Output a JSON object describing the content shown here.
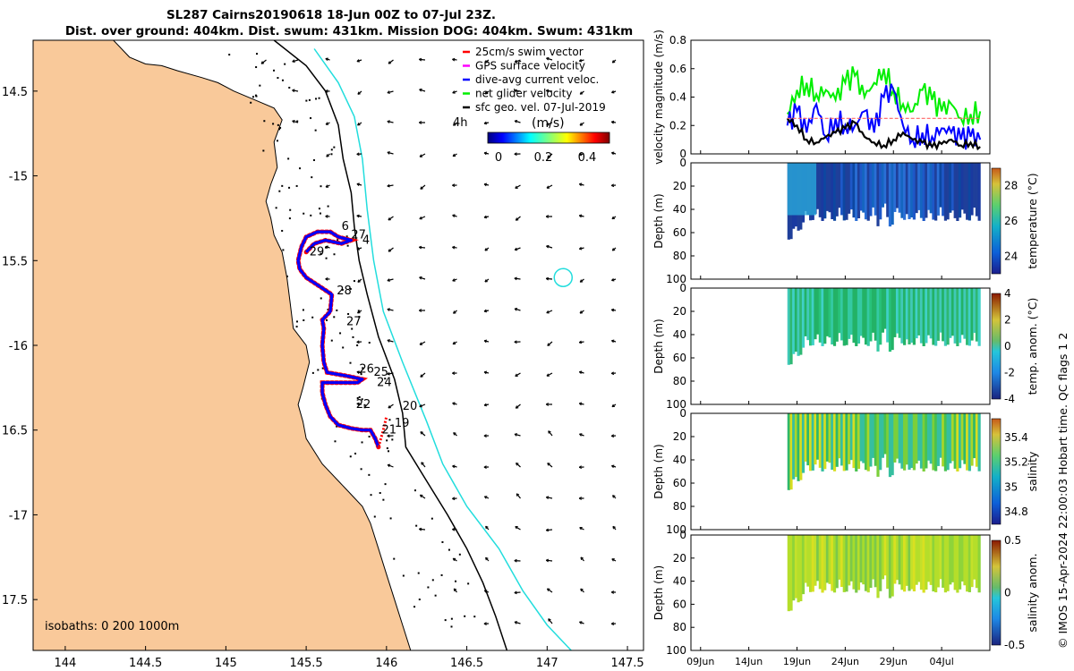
{
  "title_line1": "SL287 Cairns20190618 18-Jun 00Z to 07-Jul 23Z.",
  "title_line2": "Dist. over ground: 404km. Dist. swum: 431km. Mission DOG: 404km. Swum: 431km",
  "legend": {
    "items": [
      {
        "label": "25cm/s swim vector",
        "color": "#ff0000"
      },
      {
        "label": "GPS surface velocity",
        "color": "#ff00ff"
      },
      {
        "label": "dive-avg current veloc.",
        "color": "#0000ff"
      },
      {
        "label": "net glider velocity",
        "color": "#00ee00"
      },
      {
        "label": "sfc geo. vel. 07-Jul-2019",
        "color": "#000000"
      }
    ],
    "four_h": "4h",
    "cbar_unit": "(m/s)",
    "cbar_ticks": [
      "0",
      "0.2",
      "0.4"
    ]
  },
  "isobaths_label": "isobaths: 0   200  1000m",
  "credit": "© IMOS 15-Apr-2024 22:00:03 Hobart time. QC flags 1  2",
  "time_ticks": [
    "09Jun",
    "14Jun",
    "19Jun",
    "24Jun",
    "29Jun",
    "04Jul"
  ],
  "day_labels": [
    {
      "label": "6"
    },
    {
      "label": "27"
    },
    {
      "label": "4"
    },
    {
      "label": "29"
    },
    {
      "label": "28"
    },
    {
      "label": "27"
    },
    {
      "label": "26"
    },
    {
      "label": "25"
    },
    {
      "label": "24"
    },
    {
      "label": "22"
    },
    {
      "label": "20"
    },
    {
      "label": "19"
    },
    {
      "label": "21"
    }
  ],
  "colors": {
    "land": "#f9c99a",
    "iso200": "#000000",
    "iso1000": "#22dddd",
    "track": "#0000ff",
    "swim": "#ff0000"
  },
  "chart_data": [
    {
      "type": "map",
      "title": "SL287 Cairns20190618 18-Jun 00Z to 07-Jul 23Z.",
      "xlabel": "",
      "ylabel": "",
      "xlim": [
        143.8,
        147.6
      ],
      "ylim": [
        -17.8,
        -14.2
      ],
      "xticks": [
        144,
        144.5,
        145,
        145.5,
        146,
        146.5,
        147,
        147.5
      ],
      "yticks": [
        -14.5,
        -15,
        -15.5,
        -16,
        -16.5,
        -17,
        -17.5
      ],
      "xtick_labels": [
        "144",
        "144.5",
        "145",
        "145.5",
        "146",
        "146.5",
        "147",
        "147.5"
      ],
      "ytick_labels": [
        "14.5",
        "-15",
        "15.5",
        "-16",
        "16.5",
        "-17",
        "17.5"
      ],
      "coastline": [
        [
          143.8,
          -14.2
        ],
        [
          144.3,
          -14.2
        ],
        [
          144.4,
          -14.3
        ],
        [
          144.5,
          -14.34
        ],
        [
          144.6,
          -14.35
        ],
        [
          144.7,
          -14.38
        ],
        [
          144.85,
          -14.42
        ],
        [
          144.95,
          -14.45
        ],
        [
          145.05,
          -14.5
        ],
        [
          145.2,
          -14.56
        ],
        [
          145.3,
          -14.6
        ],
        [
          145.35,
          -14.67
        ],
        [
          145.3,
          -14.8
        ],
        [
          145.32,
          -14.95
        ],
        [
          145.28,
          -15.05
        ],
        [
          145.25,
          -15.15
        ],
        [
          145.28,
          -15.25
        ],
        [
          145.3,
          -15.35
        ],
        [
          145.35,
          -15.45
        ],
        [
          145.38,
          -15.6
        ],
        [
          145.4,
          -15.75
        ],
        [
          145.42,
          -15.9
        ],
        [
          145.5,
          -16.0
        ],
        [
          145.52,
          -16.1
        ],
        [
          145.48,
          -16.25
        ],
        [
          145.45,
          -16.35
        ],
        [
          145.48,
          -16.45
        ],
        [
          145.5,
          -16.55
        ],
        [
          145.6,
          -16.7
        ],
        [
          145.75,
          -16.85
        ],
        [
          145.85,
          -16.95
        ],
        [
          145.9,
          -17.05
        ],
        [
          145.95,
          -17.2
        ],
        [
          146.0,
          -17.35
        ],
        [
          146.05,
          -17.5
        ],
        [
          146.1,
          -17.65
        ],
        [
          146.15,
          -17.8
        ],
        [
          143.8,
          -17.8
        ]
      ],
      "isobath_200": [
        [
          145.3,
          -14.2
        ],
        [
          145.5,
          -14.35
        ],
        [
          145.62,
          -14.5
        ],
        [
          145.7,
          -14.7
        ],
        [
          145.73,
          -14.9
        ],
        [
          145.78,
          -15.1
        ],
        [
          145.8,
          -15.3
        ],
        [
          145.83,
          -15.5
        ],
        [
          145.88,
          -15.7
        ],
        [
          145.95,
          -15.95
        ],
        [
          146.05,
          -16.2
        ],
        [
          146.1,
          -16.4
        ],
        [
          146.12,
          -16.6
        ],
        [
          146.25,
          -16.8
        ],
        [
          146.38,
          -17.0
        ],
        [
          146.5,
          -17.2
        ],
        [
          146.6,
          -17.4
        ],
        [
          146.68,
          -17.6
        ],
        [
          146.75,
          -17.8
        ]
      ],
      "isobath_1000": [
        [
          145.55,
          -14.25
        ],
        [
          145.7,
          -14.45
        ],
        [
          145.8,
          -14.65
        ],
        [
          145.85,
          -14.9
        ],
        [
          145.88,
          -15.2
        ],
        [
          145.92,
          -15.5
        ],
        [
          145.98,
          -15.8
        ],
        [
          146.1,
          -16.1
        ],
        [
          146.25,
          -16.45
        ],
        [
          146.35,
          -16.7
        ],
        [
          146.5,
          -16.95
        ],
        [
          146.7,
          -17.2
        ],
        [
          146.85,
          -17.45
        ],
        [
          147.0,
          -17.65
        ],
        [
          147.15,
          -17.8
        ]
      ],
      "eddy_center": [
        147.1,
        -15.6
      ],
      "glider_track": [
        [
          145.95,
          -16.6
        ],
        [
          145.93,
          -16.55
        ],
        [
          145.9,
          -16.5
        ],
        [
          145.85,
          -16.5
        ],
        [
          145.78,
          -16.49
        ],
        [
          145.7,
          -16.47
        ],
        [
          145.65,
          -16.42
        ],
        [
          145.62,
          -16.35
        ],
        [
          145.6,
          -16.28
        ],
        [
          145.6,
          -16.22
        ],
        [
          145.7,
          -16.22
        ],
        [
          145.82,
          -16.22
        ],
        [
          145.85,
          -16.2
        ],
        [
          145.75,
          -16.18
        ],
        [
          145.63,
          -16.16
        ],
        [
          145.61,
          -16.1
        ],
        [
          145.6,
          -16.0
        ],
        [
          145.61,
          -15.9
        ],
        [
          145.6,
          -15.85
        ],
        [
          145.65,
          -15.8
        ],
        [
          145.66,
          -15.7
        ],
        [
          145.58,
          -15.65
        ],
        [
          145.5,
          -15.6
        ],
        [
          145.46,
          -15.55
        ],
        [
          145.45,
          -15.5
        ],
        [
          145.47,
          -15.42
        ],
        [
          145.5,
          -15.36
        ],
        [
          145.57,
          -15.33
        ],
        [
          145.65,
          -15.33
        ],
        [
          145.7,
          -15.36
        ],
        [
          145.78,
          -15.38
        ],
        [
          145.72,
          -15.4
        ],
        [
          145.62,
          -15.38
        ],
        [
          145.55,
          -15.4
        ],
        [
          145.5,
          -15.45
        ]
      ],
      "track_extension": [
        [
          145.95,
          -16.6
        ],
        [
          145.98,
          -16.5
        ],
        [
          146.0,
          -16.42
        ]
      ],
      "day_marks": [
        {
          "label": "6",
          "lon": 145.72,
          "lat": -15.32
        },
        {
          "label": "27",
          "lon": 145.78,
          "lat": -15.37
        },
        {
          "label": "4",
          "lon": 145.85,
          "lat": -15.4
        },
        {
          "label": "29",
          "lon": 145.52,
          "lat": -15.47
        },
        {
          "label": "28",
          "lon": 145.69,
          "lat": -15.7
        },
        {
          "label": "27",
          "lon": 145.75,
          "lat": -15.88
        },
        {
          "label": "26",
          "lon": 145.83,
          "lat": -16.16
        },
        {
          "label": "25",
          "lon": 145.92,
          "lat": -16.18
        },
        {
          "label": "24",
          "lon": 145.94,
          "lat": -16.24
        },
        {
          "label": "22",
          "lon": 145.81,
          "lat": -16.37
        },
        {
          "label": "20",
          "lon": 146.1,
          "lat": -16.38
        },
        {
          "label": "19",
          "lon": 146.05,
          "lat": -16.48
        },
        {
          "label": "21",
          "lon": 145.97,
          "lat": -16.52
        }
      ],
      "geo_vector_field": "regular grid of surface geostrophic velocity arrows, mostly pointing west/northwest at ~0.05–0.1 m/s offshore"
    },
    {
      "type": "line",
      "ylabel": "velocity magnitude (m/s)",
      "ylim": [
        0,
        0.8
      ],
      "yticks": [
        0,
        0.2,
        0.4,
        0.6,
        0.8
      ],
      "xlim": [
        "08Jun",
        "09Jul"
      ],
      "series": [
        {
          "name": "net glider velocity",
          "color": "#00ee00",
          "x_days": [
            18,
            19,
            20,
            21,
            22,
            23,
            24,
            25,
            26,
            27,
            28,
            29,
            30,
            31,
            32,
            33,
            34,
            35,
            36,
            37,
            38
          ],
          "values": [
            0.28,
            0.45,
            0.5,
            0.42,
            0.45,
            0.38,
            0.5,
            0.55,
            0.4,
            0.5,
            0.6,
            0.45,
            0.35,
            0.3,
            0.45,
            0.38,
            0.3,
            0.35,
            0.25,
            0.28,
            0.3
          ]
        },
        {
          "name": "dive-avg current veloc.",
          "color": "#0000ff",
          "x_days": [
            18,
            19,
            20,
            21,
            22,
            23,
            24,
            25,
            26,
            27,
            28,
            29,
            30,
            31,
            32,
            33,
            34,
            35,
            36,
            37,
            38
          ],
          "values": [
            0.2,
            0.3,
            0.15,
            0.35,
            0.12,
            0.25,
            0.2,
            0.2,
            0.3,
            0.15,
            0.4,
            0.45,
            0.2,
            0.1,
            0.15,
            0.12,
            0.18,
            0.15,
            0.1,
            0.12,
            0.1
          ]
        },
        {
          "name": "sfc geo. vel.",
          "color": "#000000",
          "x_days": [
            18,
            19,
            20,
            21,
            22,
            23,
            24,
            25,
            26,
            27,
            28,
            29,
            30,
            31,
            32,
            33,
            34,
            35,
            36,
            37,
            38
          ],
          "values": [
            0.25,
            0.2,
            0.1,
            0.08,
            0.12,
            0.15,
            0.18,
            0.22,
            0.12,
            0.08,
            0.06,
            0.1,
            0.15,
            0.1,
            0.08,
            0.05,
            0.07,
            0.1,
            0.06,
            0.08,
            0.05
          ]
        },
        {
          "name": "25cm/s swim",
          "color": "#ff6666",
          "x_days": [
            18,
            38
          ],
          "values": [
            0.25,
            0.25
          ]
        }
      ]
    },
    {
      "type": "heatmap",
      "ylabel": "Depth (m)",
      "cbar_label": "temperature (°C)",
      "ylim": [
        100,
        0
      ],
      "yticks": [
        0,
        20,
        40,
        60,
        80,
        100
      ],
      "cbar_ticks": [
        "28",
        "26",
        "24"
      ],
      "cbar_range": [
        23,
        29
      ],
      "colormap": "parula"
    },
    {
      "type": "heatmap",
      "ylabel": "Depth (m)",
      "cbar_label": "temp. anom. (°C)",
      "ylim": [
        100,
        0
      ],
      "yticks": [
        0,
        20,
        40,
        60,
        80,
        100
      ],
      "cbar_ticks": [
        "4",
        "2",
        "0",
        "-2",
        "-4"
      ],
      "cbar_range": [
        -4,
        4
      ],
      "colormap": "diverging"
    },
    {
      "type": "heatmap",
      "ylabel": "Depth (m)",
      "cbar_label": "salinity",
      "ylim": [
        100,
        0
      ],
      "yticks": [
        0,
        20,
        40,
        60,
        80,
        100
      ],
      "cbar_ticks": [
        "35.4",
        "35.2",
        "35",
        "34.8"
      ],
      "cbar_range": [
        34.7,
        35.55
      ],
      "colormap": "parula"
    },
    {
      "type": "heatmap",
      "ylabel": "Depth (m)",
      "cbar_label": "salinity anom.",
      "ylim": [
        100,
        0
      ],
      "yticks": [
        0,
        20,
        40,
        60,
        80,
        100
      ],
      "cbar_ticks": [
        "0.5",
        "0",
        "-0.5"
      ],
      "cbar_range": [
        -0.5,
        0.5
      ],
      "colormap": "diverging"
    }
  ]
}
